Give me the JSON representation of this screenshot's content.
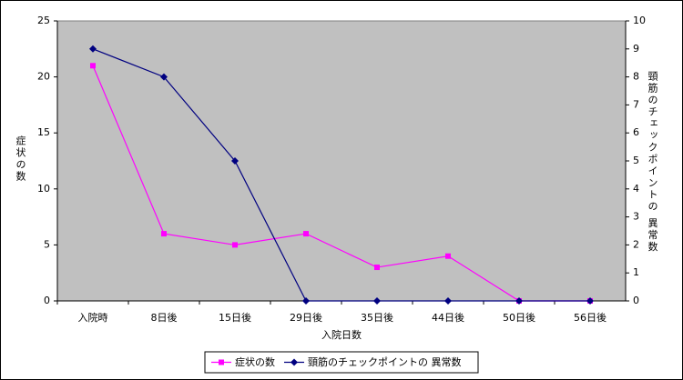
{
  "chart_data": {
    "type": "line",
    "categories": [
      "入院時",
      "8日後",
      "15日後",
      "29日後",
      "35日後",
      "44日後",
      "50日後",
      "56日後"
    ],
    "series": [
      {
        "name": "症状の数",
        "color": "#ff00ff",
        "marker": "square",
        "values": [
          21,
          6,
          5,
          6,
          3,
          4,
          0,
          0
        ]
      },
      {
        "name": "頸筋のチェックポイントの 異常数",
        "color": "#000080",
        "marker": "diamond",
        "axis": "y2",
        "values": [
          9,
          8,
          5,
          0,
          0,
          0,
          0,
          0
        ]
      }
    ],
    "x_label": "入院日数",
    "y_label": "症状の数",
    "y2_label": "頸筋のチェックポイントの 異常数",
    "ylim": [
      0,
      25
    ],
    "yticks": [
      0,
      5,
      10,
      15,
      20,
      25
    ],
    "y2lim": [
      0,
      10
    ],
    "y2ticks": [
      0,
      1,
      2,
      3,
      4,
      5,
      6,
      7,
      8,
      9,
      10
    ],
    "plot_background": "#c0c0c0",
    "legend": "bottom"
  }
}
